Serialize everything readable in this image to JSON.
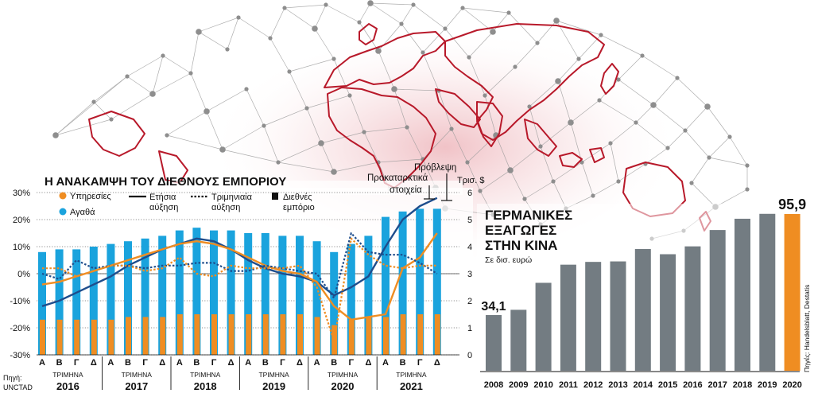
{
  "chart_data": [
    {
      "type": "bar+line",
      "title": "Η ΑΝΑΚΑΜΨΗ ΤΟΥ ΔΙΕΘΝΟΥΣ ΕΜΠΟΡΙΟΥ",
      "left_axis": {
        "ylim": [
          -30,
          30
        ],
        "ticks": [
          "30%",
          "20%",
          "10%",
          "0%",
          "-10%",
          "-20%",
          "-30%"
        ]
      },
      "right_axis": {
        "label": "Τρισ. $",
        "ylim": [
          0,
          6
        ],
        "ticks": [
          "6",
          "5",
          "4",
          "3",
          "2",
          "1",
          "0"
        ]
      },
      "quarters": [
        "Α",
        "Β",
        "Γ",
        "Δ",
        "Α",
        "Β",
        "Γ",
        "Δ",
        "Α",
        "Β",
        "Γ",
        "Δ",
        "Α",
        "Β",
        "Γ",
        "Δ",
        "Α",
        "Β",
        "Γ",
        "Δ",
        "Α",
        "Β",
        "Γ",
        "Δ"
      ],
      "year_group_label": "ΤΡΙΜΗΝΑ",
      "years": [
        "2016",
        "2017",
        "2018",
        "2019",
        "2020",
        "2021"
      ],
      "legend": {
        "services": "Υπηρεσίες",
        "goods": "Αγαθά",
        "annual": "Ετήσια αύξηση",
        "quarterly": "Τριμηνιαία αύξηση",
        "world_trade": "Διεθνές εμπόριο"
      },
      "annotations": {
        "forecast": "Πρόβλεψη",
        "preliminary": "Προκαταρκτικά στοιχεία"
      },
      "source": "Πηγή: UNCTAD",
      "series": [
        {
          "name": "Αγαθά",
          "axis": "right",
          "values": [
            3.8,
            3.9,
            3.9,
            4.0,
            4.1,
            4.2,
            4.3,
            4.4,
            4.6,
            4.7,
            4.6,
            4.6,
            4.5,
            4.5,
            4.4,
            4.4,
            4.2,
            3.8,
            4.1,
            4.4,
            5.1,
            5.3,
            5.4,
            5.4
          ]
        },
        {
          "name": "Υπηρεσίες",
          "axis": "right",
          "values": [
            1.3,
            1.3,
            1.3,
            1.3,
            1.3,
            1.4,
            1.4,
            1.4,
            1.5,
            1.5,
            1.5,
            1.5,
            1.5,
            1.5,
            1.5,
            1.5,
            1.4,
            1.1,
            1.3,
            1.4,
            1.4,
            1.5,
            1.5,
            1.5
          ]
        },
        {
          "name": "Αγαθά Ετήσια αύξηση",
          "axis": "left",
          "values": [
            -12,
            -10,
            -7,
            -4,
            -1,
            3,
            6,
            9,
            11,
            13,
            12,
            9,
            5,
            2,
            0,
            -1,
            -3,
            -8,
            -5,
            -1,
            10,
            20,
            25,
            28
          ]
        },
        {
          "name": "Υπηρεσίες Ετήσια αύξηση",
          "axis": "left",
          "values": [
            -4,
            -3,
            -1,
            1,
            3,
            5,
            7,
            9,
            11,
            12,
            11,
            9,
            6,
            3,
            1,
            0,
            -3,
            -12,
            -17,
            -16,
            -15,
            2,
            6,
            15
          ]
        },
        {
          "name": "Αγαθά Τριμηνιαία αύξηση",
          "axis": "left",
          "values": [
            0,
            -2,
            5,
            2,
            3,
            3,
            2,
            3,
            3,
            4,
            4,
            1,
            1,
            3,
            2,
            1,
            0,
            -9,
            15,
            8,
            7,
            7,
            4,
            0
          ]
        },
        {
          "name": "Υπηρεσίες Τριμηνιαία αύξηση",
          "axis": "left",
          "values": [
            2,
            2,
            -1,
            1,
            3,
            3,
            1,
            2,
            6,
            0,
            -1,
            3,
            2,
            2,
            2,
            3,
            -5,
            -25,
            13,
            7,
            3,
            2,
            3,
            3
          ]
        }
      ]
    },
    {
      "type": "bar",
      "title": "ΓΕΡΜΑΝΙΚΕΣ ΕΞΑΓΩΓΕΣ ΣΤΗΝ ΚΙΝΑ",
      "subtitle": "Σε δισ. ευρώ",
      "source": "Πηγές: Handelsblatt, Destatis",
      "categories": [
        "2008",
        "2009",
        "2010",
        "2011",
        "2012",
        "2013",
        "2014",
        "2015",
        "2016",
        "2017",
        "2018",
        "2019",
        "2020"
      ],
      "values": [
        34.1,
        37.3,
        53.8,
        64.9,
        66.6,
        66.9,
        74.5,
        71.3,
        76.1,
        86.1,
        93.0,
        96.0,
        95.9
      ],
      "data_labels": {
        "first": "34,1",
        "last": "95,9"
      },
      "highlight_color": "#ef8d22",
      "bar_color": "#737c82",
      "ylim": [
        0,
        110
      ]
    }
  ],
  "colors": {
    "goods_blue": "#1aa3dd",
    "services_orange": "#ef8d22",
    "line_navy": "#1e4d8c",
    "map_red": "#b8192a",
    "network_grey": "#9a9a9a"
  }
}
